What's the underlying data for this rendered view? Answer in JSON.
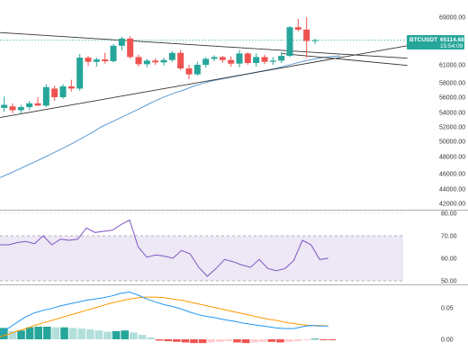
{
  "chart_data": [
    {
      "type": "candlestick",
      "pane": "price",
      "ylim": [
        42000,
        70000
      ],
      "y_ticks": [
        "69000.00",
        "61000.00",
        "58000.00",
        "56000.00",
        "54000.00",
        "52000.00",
        "50000.00",
        "48000.00",
        "46000.00",
        "44000.00",
        "42000.00"
      ],
      "y_tick_values": [
        69000,
        61000,
        58000,
        56000,
        54000,
        52000,
        50000,
        48000,
        46000,
        44000,
        42000
      ],
      "symbol_label": "BTCUSDT",
      "last_price_label": "65114.68",
      "countdown_label": "15:54:09",
      "last_price": 65114.68,
      "candles": [
        {
          "o": 54600,
          "h": 56100,
          "l": 54100,
          "c": 55000
        },
        {
          "o": 54800,
          "h": 55200,
          "l": 53900,
          "c": 54300
        },
        {
          "o": 54300,
          "h": 55000,
          "l": 53800,
          "c": 54700
        },
        {
          "o": 54700,
          "h": 55500,
          "l": 54300,
          "c": 55200
        },
        {
          "o": 55200,
          "h": 56000,
          "l": 54900,
          "c": 54900
        },
        {
          "o": 54900,
          "h": 57800,
          "l": 54700,
          "c": 57400
        },
        {
          "o": 57200,
          "h": 57600,
          "l": 55500,
          "c": 56000
        },
        {
          "o": 56000,
          "h": 57800,
          "l": 55800,
          "c": 57500
        },
        {
          "o": 57500,
          "h": 58500,
          "l": 56800,
          "c": 57200
        },
        {
          "o": 57200,
          "h": 62800,
          "l": 56900,
          "c": 62200
        },
        {
          "o": 62200,
          "h": 62500,
          "l": 60800,
          "c": 61500
        },
        {
          "o": 61500,
          "h": 62200,
          "l": 60700,
          "c": 61900
        },
        {
          "o": 61900,
          "h": 63000,
          "l": 61200,
          "c": 61600
        },
        {
          "o": 61600,
          "h": 64500,
          "l": 61400,
          "c": 64200
        },
        {
          "o": 64200,
          "h": 65700,
          "l": 63400,
          "c": 65400
        },
        {
          "o": 65400,
          "h": 65800,
          "l": 62000,
          "c": 62300
        },
        {
          "o": 62300,
          "h": 62700,
          "l": 60700,
          "c": 61100
        },
        {
          "o": 61100,
          "h": 62000,
          "l": 60600,
          "c": 61700
        },
        {
          "o": 61700,
          "h": 62100,
          "l": 61000,
          "c": 61400
        },
        {
          "o": 61400,
          "h": 62200,
          "l": 60900,
          "c": 61800
        },
        {
          "o": 61800,
          "h": 63300,
          "l": 61500,
          "c": 63000
        },
        {
          "o": 63000,
          "h": 63500,
          "l": 60100,
          "c": 60400
        },
        {
          "o": 60400,
          "h": 61000,
          "l": 58600,
          "c": 59400
        },
        {
          "o": 59400,
          "h": 61500,
          "l": 59200,
          "c": 61000
        },
        {
          "o": 61000,
          "h": 62300,
          "l": 60500,
          "c": 62000
        },
        {
          "o": 62000,
          "h": 62600,
          "l": 61600,
          "c": 62300
        },
        {
          "o": 62300,
          "h": 62500,
          "l": 61300,
          "c": 61800
        },
        {
          "o": 61800,
          "h": 62400,
          "l": 60700,
          "c": 61200
        },
        {
          "o": 61200,
          "h": 63500,
          "l": 60600,
          "c": 62900
        },
        {
          "o": 62900,
          "h": 63100,
          "l": 61000,
          "c": 61300
        },
        {
          "o": 61300,
          "h": 62900,
          "l": 60700,
          "c": 62300
        },
        {
          "o": 62300,
          "h": 62700,
          "l": 61100,
          "c": 61500
        },
        {
          "o": 61500,
          "h": 62300,
          "l": 61000,
          "c": 61700
        },
        {
          "o": 61700,
          "h": 63100,
          "l": 61300,
          "c": 62500
        },
        {
          "o": 62500,
          "h": 67500,
          "l": 62300,
          "c": 67300
        },
        {
          "o": 67300,
          "h": 68700,
          "l": 66600,
          "c": 66900
        },
        {
          "o": 66900,
          "h": 69000,
          "l": 62100,
          "c": 65000
        },
        {
          "o": 65000,
          "h": 65400,
          "l": 64500,
          "c": 65114.68
        }
      ],
      "moving_average": [
        45500,
        46000,
        46500,
        47000,
        47500,
        48000,
        48600,
        49200,
        49800,
        50500,
        51200,
        52000,
        52600,
        53200,
        53800,
        54400,
        55000,
        55600,
        56100,
        56600,
        57000,
        57500,
        57900,
        58300,
        58600,
        58900,
        59200,
        59500,
        59800,
        60100,
        60400,
        60800,
        61200,
        61600,
        61900,
        62200,
        62400,
        62500
      ],
      "trendlines": [
        {
          "from": [
            -0.5,
            66400
          ],
          "to": [
            48,
            62100
          ]
        },
        {
          "from": [
            -0.5,
            53300
          ],
          "to": [
            48,
            64200
          ]
        },
        {
          "from": [
            33,
            62900
          ],
          "to": [
            48,
            60900
          ]
        }
      ]
    },
    {
      "type": "line",
      "pane": "rsi",
      "ylim": [
        50,
        80
      ],
      "y_ticks": [
        "80.00",
        "70.00",
        "60.00",
        "50.00"
      ],
      "y_tick_values": [
        80,
        70,
        60,
        50
      ],
      "band": [
        50,
        70
      ],
      "values": [
        66,
        66,
        67,
        67.5,
        66.5,
        70,
        66,
        68.5,
        68,
        68.5,
        73.5,
        71.5,
        72,
        72.5,
        75,
        77,
        65,
        60.5,
        61.5,
        61,
        60,
        63.5,
        62,
        56,
        52,
        55.5,
        59.5,
        58.5,
        57,
        56,
        59.5,
        55.5,
        54.5,
        55.5,
        59,
        68,
        66,
        59.5,
        60
      ]
    },
    {
      "type": "macd",
      "pane": "macd",
      "ylim": [
        -0.03,
        0.1
      ],
      "y_ticks": [
        "0.05",
        "0.00"
      ],
      "y_tick_values": [
        0.05,
        0.0
      ],
      "macd_line": [
        0.01,
        0.018,
        0.027,
        0.036,
        0.042,
        0.046,
        0.049,
        0.053,
        0.056,
        0.059,
        0.062,
        0.064,
        0.066,
        0.069,
        0.073,
        0.075,
        0.07,
        0.064,
        0.059,
        0.055,
        0.052,
        0.048,
        0.043,
        0.039,
        0.036,
        0.034,
        0.031,
        0.029,
        0.026,
        0.024,
        0.022,
        0.02,
        0.018,
        0.017,
        0.017,
        0.02,
        0.022,
        0.021,
        0.021
      ],
      "signal_line": [
        0.004,
        0.008,
        0.013,
        0.017,
        0.022,
        0.026,
        0.03,
        0.034,
        0.038,
        0.042,
        0.046,
        0.05,
        0.054,
        0.058,
        0.061,
        0.064,
        0.066,
        0.067,
        0.067,
        0.066,
        0.064,
        0.062,
        0.059,
        0.056,
        0.053,
        0.05,
        0.047,
        0.044,
        0.041,
        0.038,
        0.035,
        0.032,
        0.03,
        0.027,
        0.025,
        0.023,
        0.022,
        0.022,
        0.021
      ],
      "histogram": [
        0.018,
        0.013,
        0.014,
        0.019,
        0.02,
        0.02,
        0.019,
        0.019,
        0.018,
        0.017,
        0.016,
        0.014,
        0.012,
        0.013,
        0.014,
        0.011,
        0.007,
        0.003,
        -0.002,
        -0.003,
        -0.004,
        -0.005,
        -0.006,
        -0.006,
        -0.005,
        -0.004,
        -0.003,
        -0.005,
        -0.006,
        -0.005,
        -0.004,
        -0.004,
        -0.005,
        -0.004,
        -0.003,
        -0.001,
        0.001,
        -0.001,
        -0.001
      ]
    }
  ],
  "colors": {
    "up": "#26a69a",
    "down": "#ef5350",
    "ma": "#5b9bd5",
    "trend": "#333333",
    "last_price": "#26a69a",
    "rsi_line": "#7e57c2",
    "rsi_band": "#ede7f6",
    "macd_line": "#2196f3",
    "signal_line": "#ff9800",
    "hist_up_strong": "#26a69a",
    "hist_up_weak": "#b2dfdb",
    "hist_down_strong": "#ef5350",
    "hist_down_weak": "#ffcdd2"
  }
}
